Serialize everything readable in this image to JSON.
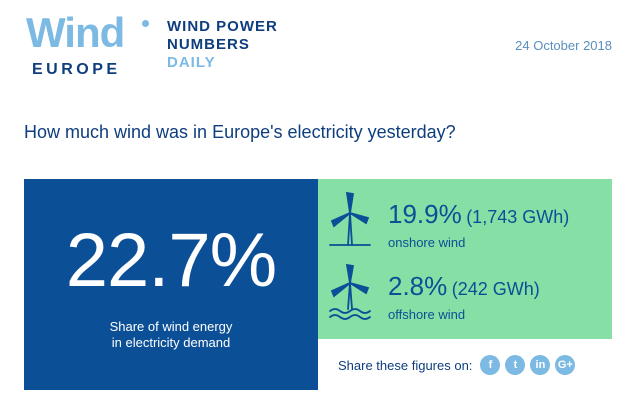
{
  "header": {
    "logo_word": "Wind",
    "logo_sub": "EUROPE",
    "tagline": [
      "WIND POWER",
      "NUMBERS",
      "DAILY"
    ],
    "date": "24 October 2018"
  },
  "question": "How much wind was in Europe's electricity yesterday?",
  "main": {
    "share_value": "22.7%",
    "caption_line1": "Share of wind energy",
    "caption_line2": "in electricity demand"
  },
  "stats": [
    {
      "icon": "onshore-wind-turbine-icon",
      "pct": "19.9%",
      "gwh": "(1,743 GWh)",
      "label": "onshore wind"
    },
    {
      "icon": "offshore-wind-turbine-icon",
      "pct": "2.8%",
      "gwh": "(242 GWh)",
      "label": "offshore wind"
    }
  ],
  "share": {
    "label": "Share these figures on:",
    "icons": [
      {
        "name": "facebook-icon",
        "glyph": "f"
      },
      {
        "name": "twitter-icon",
        "glyph": "t"
      },
      {
        "name": "linkedin-icon",
        "glyph": "in"
      },
      {
        "name": "google-plus-icon",
        "glyph": "G+"
      }
    ]
  },
  "colors": {
    "brand_blue": "#0b4f96",
    "light_blue": "#7cb9e3",
    "green": "#86dfa5"
  }
}
